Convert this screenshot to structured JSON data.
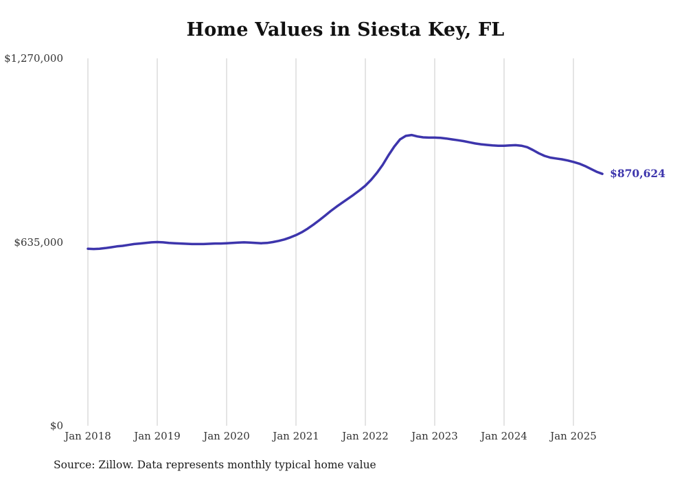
{
  "title": "Home Values in Siesta Key, FL",
  "source": "Source: Zillow. Data represents monthly typical home value",
  "end_label": "$870,624",
  "colors": {
    "line": "#3d35ac",
    "end_label": "#3d35ac",
    "grid": "#c8c8c8",
    "text": "#333333"
  },
  "chart_data": {
    "type": "line",
    "title": "Home Values in Siesta Key, FL",
    "unit": "USD",
    "x_start": "Jan 2018",
    "x_end": "Jun 2025",
    "x_tick_labels": [
      "Jan 2018",
      "Jan 2019",
      "Jan 2020",
      "Jan 2021",
      "Jan 2022",
      "Jan 2023",
      "Jan 2024",
      "Jan 2025"
    ],
    "y_ticks": [
      {
        "label": "$1,270,000",
        "value": 1270000
      },
      {
        "label": "$635,000",
        "value": 635000
      },
      {
        "label": "$0",
        "value": 0
      }
    ],
    "ylim": [
      0,
      1270000
    ],
    "grid": "vertical-only",
    "legend": "none",
    "final_value": 870624,
    "series": [
      {
        "name": "Typical home value",
        "monthly_values": [
          612000,
          611000,
          612000,
          614000,
          617000,
          620000,
          622000,
          625000,
          628000,
          630000,
          632000,
          634000,
          635000,
          634000,
          632000,
          631000,
          630000,
          629000,
          628000,
          628000,
          628000,
          629000,
          630000,
          630000,
          631000,
          632000,
          633000,
          634000,
          633000,
          632000,
          631000,
          632000,
          635000,
          639000,
          644000,
          651000,
          659000,
          669000,
          681000,
          695000,
          710000,
          726000,
          742000,
          757000,
          771000,
          785000,
          799000,
          814000,
          830000,
          850000,
          874000,
          902000,
          935000,
          965000,
          990000,
          1002000,
          1005000,
          1000000,
          997000,
          996000,
          996000,
          995000,
          993000,
          990000,
          987000,
          984000,
          980000,
          976000,
          973000,
          971000,
          969000,
          968000,
          968000,
          969000,
          970000,
          968000,
          963000,
          953000,
          942000,
          933000,
          927000,
          924000,
          921000,
          917000,
          912000,
          906000,
          898000,
          888000,
          878000,
          870624
        ]
      }
    ]
  }
}
